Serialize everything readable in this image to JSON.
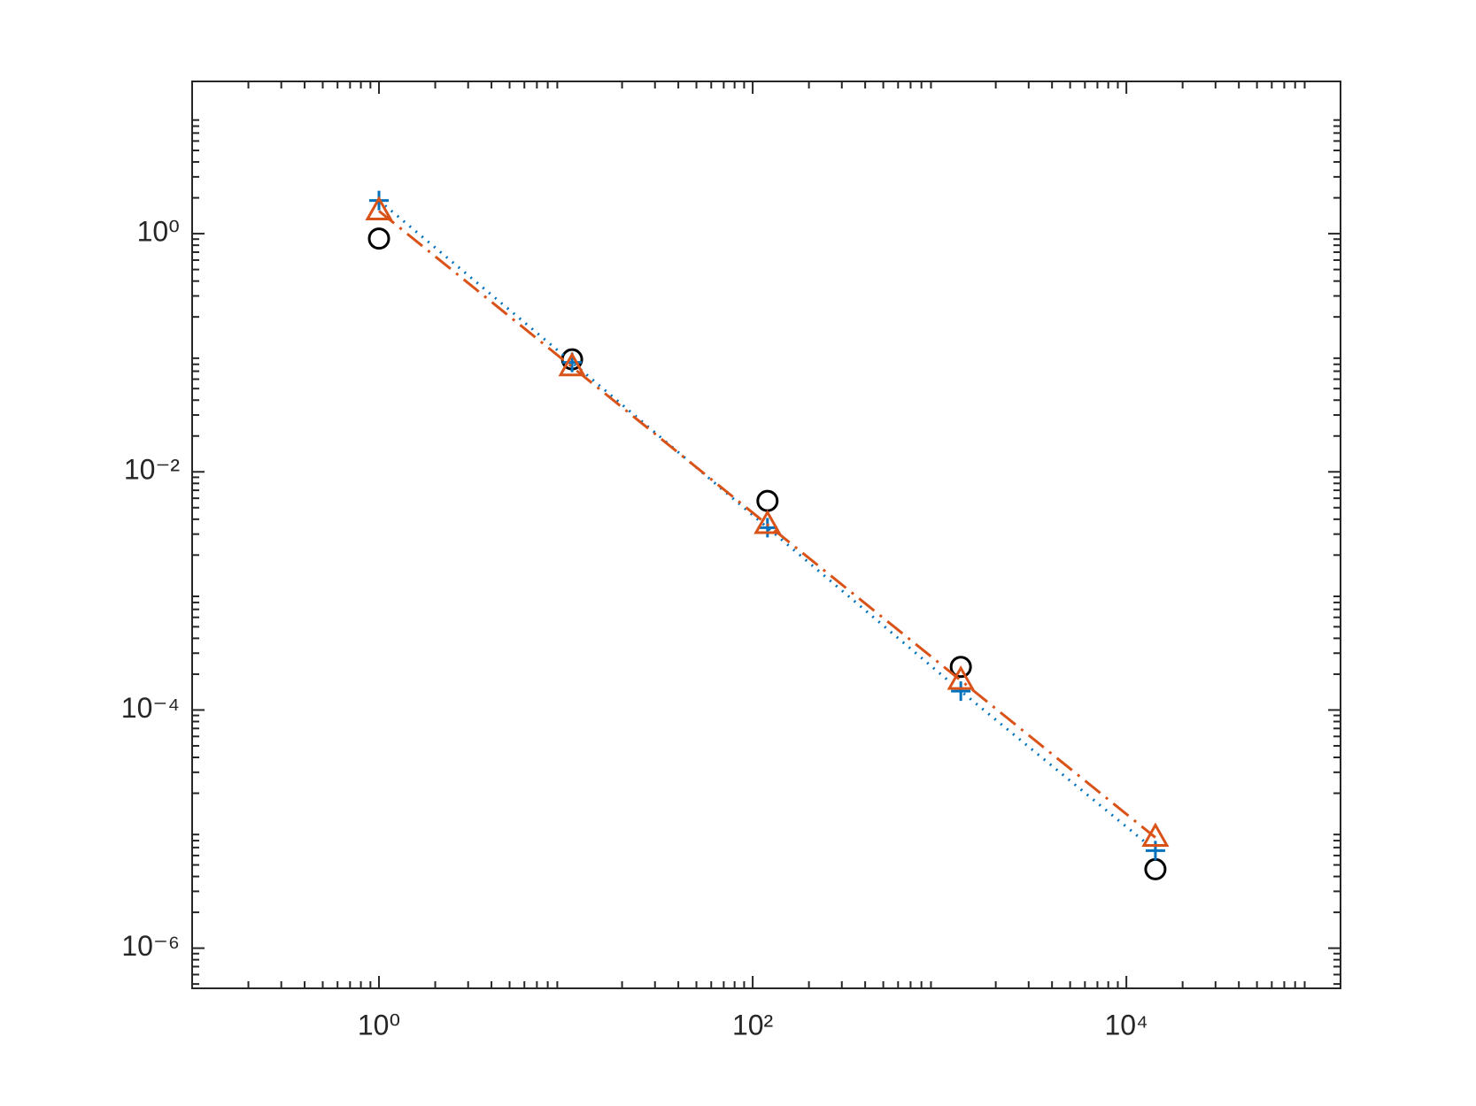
{
  "chart_data": {
    "type": "line",
    "x": [
      1,
      10.8,
      120,
      1300,
      14300
    ],
    "series": [
      {
        "color": "#000000",
        "marker": "circle",
        "line": "none",
        "values": [
          0.91,
          0.088,
          0.0057,
          0.00023,
          4.6e-06
        ]
      },
      {
        "color": "#0072bd",
        "marker": "plus",
        "line": "dotted",
        "values": [
          1.9,
          0.083,
          0.0034,
          0.000144,
          6.6e-06
        ]
      },
      {
        "color": "#d95319",
        "marker": "triangle",
        "line": "dashdot",
        "values": [
          1.55,
          0.076,
          0.0036,
          0.000177,
          8.5e-06
        ]
      }
    ],
    "xscale": "log",
    "yscale": "log",
    "xlim": [
      0.1,
      140000
    ],
    "ylim": [
      4.6e-07,
      19
    ],
    "xticks": [
      {
        "value": 1,
        "label": "10⁰"
      },
      {
        "value": 100,
        "label": "10²"
      },
      {
        "value": 10000,
        "label": "10⁴"
      }
    ],
    "yticks": [
      {
        "value": 1e-06,
        "label": "10⁻⁶"
      },
      {
        "value": 0.0001,
        "label": "10⁻⁴"
      },
      {
        "value": 0.01,
        "label": "10⁻²"
      },
      {
        "value": 1,
        "label": "10⁰"
      }
    ],
    "grid": false
  }
}
